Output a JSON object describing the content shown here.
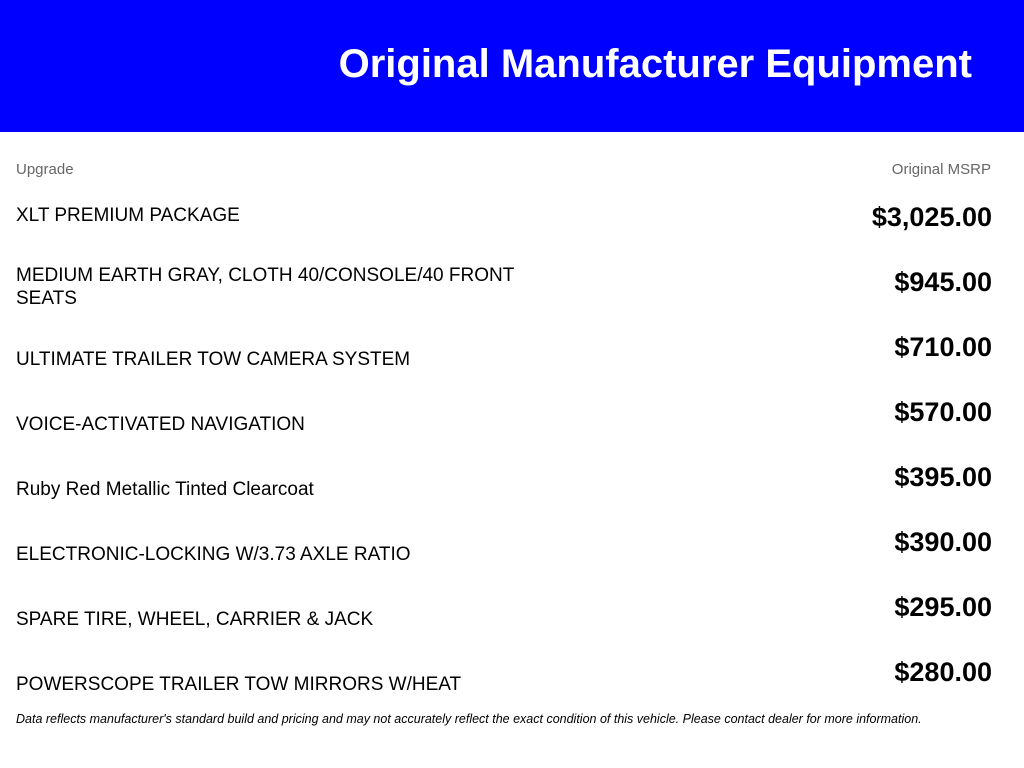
{
  "header": {
    "title": "Original Manufacturer Equipment",
    "background": "#0000ff"
  },
  "columns": {
    "upgrade": "Upgrade",
    "msrp": "Original MSRP"
  },
  "items": [
    {
      "name": "XLT PREMIUM PACKAGE",
      "price": "$3,025.00"
    },
    {
      "name": "MEDIUM EARTH GRAY, CLOTH 40/CONSOLE/40 FRONT SEATS",
      "price": "$945.00"
    },
    {
      "name": "ULTIMATE TRAILER TOW CAMERA SYSTEM",
      "price": "$710.00"
    },
    {
      "name": "VOICE-ACTIVATED NAVIGATION",
      "price": "$570.00"
    },
    {
      "name": "Ruby Red Metallic Tinted Clearcoat",
      "price": "$395.00"
    },
    {
      "name": "ELECTRONIC-LOCKING W/3.73 AXLE RATIO",
      "price": "$390.00"
    },
    {
      "name": "SPARE TIRE, WHEEL, CARRIER & JACK",
      "price": "$295.00"
    },
    {
      "name": "POWERSCOPE TRAILER TOW MIRRORS W/HEAT",
      "price": "$280.00"
    }
  ],
  "disclaimer": "Data reflects manufacturer's standard build and pricing and may not accurately reflect the exact condition of this vehicle. Please contact dealer for more information."
}
